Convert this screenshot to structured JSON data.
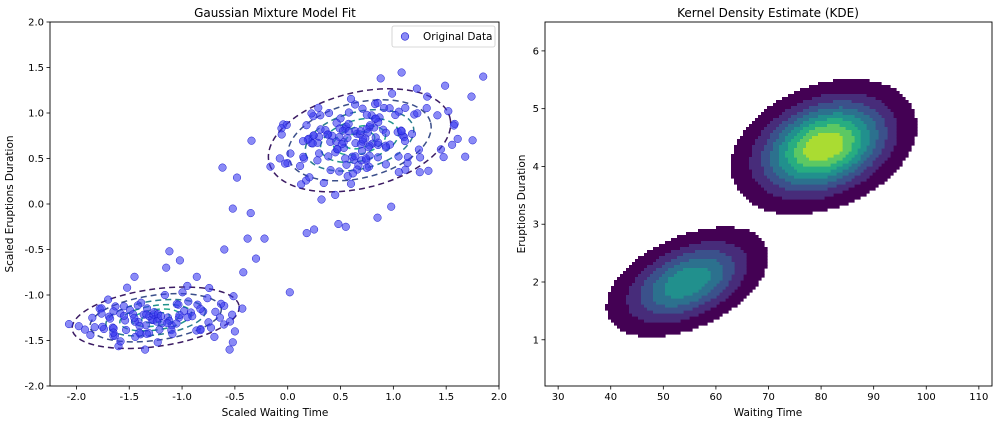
{
  "chart_data": [
    {
      "type": "scatter",
      "title": "Gaussian Mixture Model Fit",
      "xlabel": "Scaled Waiting Time",
      "ylabel": "Scaled Eruptions Duration",
      "xlim": [
        -2.25,
        2.0
      ],
      "ylim": [
        -2.0,
        2.0
      ],
      "xticks": [
        "-2.0",
        "-1.5",
        "-1.0",
        "-0.5",
        "0.0",
        "0.5",
        "1.0",
        "1.5",
        "2.0"
      ],
      "yticks": [
        "-2.0",
        "-1.5",
        "-1.0",
        "-0.5",
        "0.0",
        "0.5",
        "1.0",
        "1.5",
        "2.0"
      ],
      "grid": false,
      "legend": {
        "position": "top-right",
        "entries": [
          "Original Data"
        ]
      },
      "point_color": "#3c3cf0",
      "contour_colors": [
        "#3b1b63",
        "#3b4f8a",
        "#2a7b8e",
        "#21918c",
        "#26a98b"
      ],
      "gmm_components": [
        {
          "mean": [
            0.68,
            0.7
          ],
          "sd": [
            0.42,
            0.25
          ],
          "rho": 0.35
        },
        {
          "mean": [
            -1.25,
            -1.25
          ],
          "sd": [
            0.38,
            0.15
          ],
          "rho": 0.25
        }
      ],
      "series": [
        {
          "name": "Original Data",
          "x": [
            -2.07,
            -1.92,
            -1.85,
            -1.78,
            -1.7,
            -1.52,
            -1.12,
            -1.02,
            -0.86,
            -0.8,
            -0.55,
            -0.52,
            -0.5,
            -0.43,
            -0.42,
            -0.38,
            -0.3,
            -0.22,
            0.02,
            0.18,
            0.32,
            0.48,
            0.55,
            0.88,
            0.98,
            1.32,
            1.52,
            1.58,
            1.68,
            1.85,
            -0.48,
            -0.52,
            -0.35,
            0.25,
            -0.6,
            -0.95,
            -1.15,
            -1.45,
            -1.65,
            -1.35,
            -1.05,
            -0.75,
            0.45,
            0.85,
            1.25,
            1.45,
            1.75
          ],
          "y": [
            -1.32,
            -1.38,
            -1.25,
            -1.15,
            -1.05,
            -0.92,
            -0.52,
            -0.62,
            -0.8,
            -1.18,
            -1.6,
            -1.52,
            -1.4,
            -1.15,
            -0.75,
            -0.38,
            -0.6,
            -0.38,
            -0.97,
            -0.32,
            0.05,
            -0.22,
            -0.25,
            1.38,
            -0.03,
            1.18,
            1.02,
            0.88,
            0.52,
            1.4,
            0.29,
            -0.05,
            -0.1,
            -0.28,
            -0.5,
            -0.9,
            -0.7,
            -0.8,
            -1.45,
            -1.6,
            -1.1,
            -1.3,
            0.1,
            -0.15,
            0.35,
            0.6,
            0.7
          ]
        }
      ]
    },
    {
      "type": "area",
      "subtype": "kde-contour",
      "title": "Kernel Density Estimate (KDE)",
      "xlabel": "Waiting Time",
      "ylabel": "Eruptions Duration",
      "xlim": [
        27.5,
        112.5
      ],
      "ylim": [
        0.2,
        6.5
      ],
      "xticks": [
        "30",
        "40",
        "50",
        "60",
        "70",
        "80",
        "90",
        "100",
        "110"
      ],
      "yticks": [
        "1",
        "2",
        "3",
        "4",
        "5",
        "6"
      ],
      "grid": false,
      "palette": [
        "#440154",
        "#472c7a",
        "#3b518b",
        "#2c718e",
        "#21908d",
        "#27ad81",
        "#5cc863",
        "#aadc32"
      ],
      "kde_components": [
        {
          "mean": [
            80.5,
            4.35
          ],
          "sd": [
            6.8,
            0.45
          ],
          "rho": 0.3,
          "weight": 0.64
        },
        {
          "mean": [
            54.5,
            2.0
          ],
          "sd": [
            6.5,
            0.4
          ],
          "rho": 0.45,
          "weight": 0.36
        }
      ],
      "levels": [
        0.035,
        0.12,
        0.22,
        0.33,
        0.45,
        0.58,
        0.72,
        0.86
      ]
    }
  ]
}
